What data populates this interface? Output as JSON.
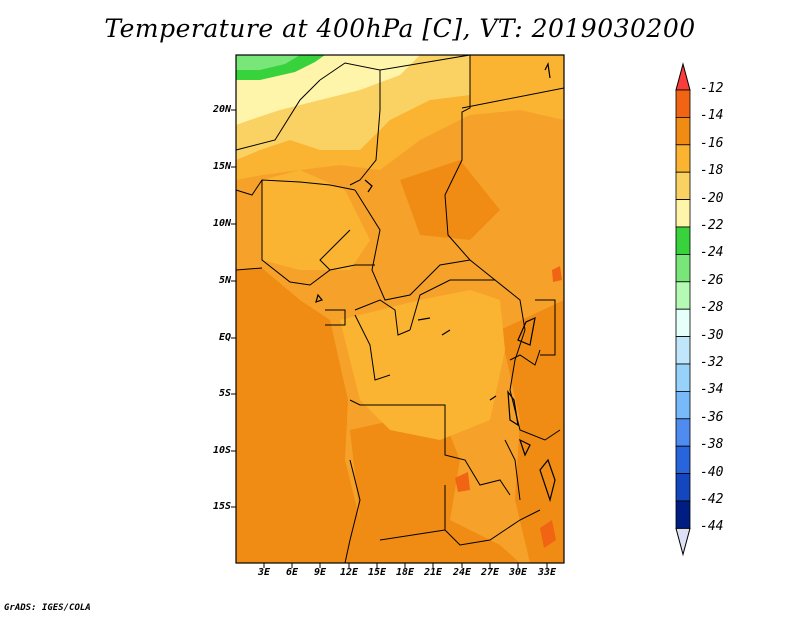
{
  "title": "Temperature at 400hPa [C], VT: 2019030200",
  "credit": "GrADS: IGES/COLA",
  "map": {
    "lat_labels": [
      "20N",
      "15N",
      "10N",
      "5N",
      "EQ",
      "5S",
      "10S",
      "15S"
    ],
    "lon_labels": [
      "3E",
      "6E",
      "9E",
      "12E",
      "15E",
      "18E",
      "21E",
      "24E",
      "27E",
      "30E",
      "33E"
    ],
    "field": "Temperature at 400hPa",
    "units": "C"
  },
  "colorbar": {
    "labels": [
      "-12",
      "-14",
      "-16",
      "-18",
      "-20",
      "-22",
      "-24",
      "-26",
      "-28",
      "-30",
      "-32",
      "-34",
      "-36",
      "-38",
      "-40",
      "-42",
      "-44"
    ],
    "colors": [
      "#fa3c3c",
      "#f06414",
      "#f08c14",
      "#fab432",
      "#fad264",
      "#fff5aa",
      "#37d23c",
      "#78e678",
      "#b4fab4",
      "#e6fffa",
      "#bfe6fa",
      "#96d2fa",
      "#78b9fa",
      "#508cf0",
      "#2864dc",
      "#1446be",
      "#001e82",
      "#dde1f5"
    ]
  }
}
